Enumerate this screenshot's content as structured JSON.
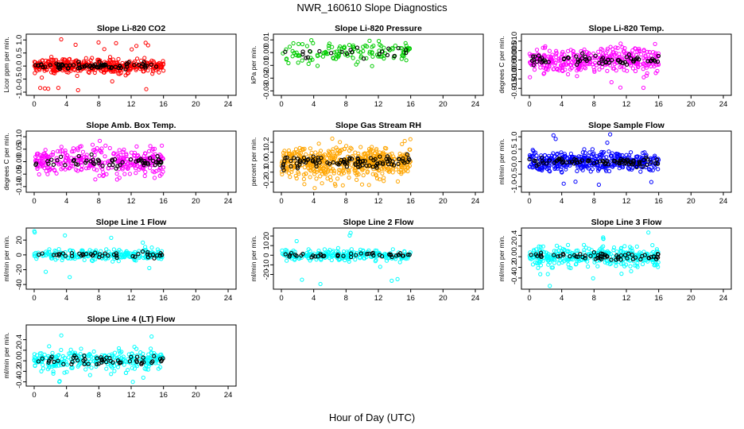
{
  "figure": {
    "title": "NWR_160610  Slope Diagnostics",
    "xlabel": "Hour of Day (UTC)"
  },
  "chart_data": [
    {
      "id": "co2",
      "type": "scatter",
      "title": "Slope Li-820 CO2",
      "ylabel": "Licor ppm per min.",
      "color": "#ff0000",
      "xlim": [
        0,
        24
      ],
      "xticks": [
        0,
        4,
        8,
        12,
        16,
        20,
        24
      ],
      "ylim": [
        -1.0,
        1.1
      ],
      "yticks": [
        -1.0,
        -0.5,
        0.0,
        0.5,
        1.0
      ],
      "ytick_labels": [
        "-1.0",
        "-0.5",
        "0.0",
        "0.5",
        "1.0"
      ],
      "series": [
        {
          "name": "all samples",
          "values": "dense scatter 0-16 h, mostly within +/-0.3, extremes near +1.1 and -1.0"
        },
        {
          "name": "selected (black)",
          "values": "near 0.0"
        }
      ]
    },
    {
      "id": "pressure",
      "type": "scatter",
      "title": "Slope Li-820 Pressure",
      "ylabel": "kPa per min.",
      "color": "#00cc00",
      "xlim": [
        0,
        24
      ],
      "xticks": [
        0,
        4,
        8,
        12,
        16,
        20,
        24
      ],
      "ylim": [
        -0.031,
        0.012
      ],
      "yticks": [
        -0.03,
        -0.02,
        -0.01,
        0.0,
        0.01
      ],
      "ytick_labels": [
        "-0.03",
        "-0.02",
        "-0.01",
        "0.00",
        "0.01"
      ],
      "series": [
        {
          "name": "all samples",
          "values": "0-16 h, mostly between -0.01 and +0.01, outliers to -0.03"
        },
        {
          "name": "selected (black)",
          "values": "near 0.00"
        }
      ]
    },
    {
      "id": "temp",
      "type": "scatter",
      "title": "Slope Li-820 Temp.",
      "ylabel": "degrees C per min.",
      "color": "#ff00ff",
      "xlim": [
        0,
        24
      ],
      "xticks": [
        0,
        4,
        8,
        12,
        16,
        20,
        24
      ],
      "ylim": [
        -0.017,
        0.012
      ],
      "yticks": [
        -0.015,
        -0.01,
        -0.005,
        0.0,
        0.005,
        0.01
      ],
      "ytick_labels": [
        "-0.015",
        "-0.010",
        "-0.005",
        "0.000",
        "0.005",
        "0.010"
      ],
      "series": [
        {
          "name": "all samples",
          "values": "0-16 h, roughly -0.012 to +0.010"
        },
        {
          "name": "selected (black)",
          "values": "roughly -0.01 to +0.006"
        }
      ]
    },
    {
      "id": "boxtemp",
      "type": "scatter",
      "title": "Slope Amb. Box Temp.",
      "ylabel": "degrees C per min.",
      "color": "#ff00ff",
      "xlim": [
        0,
        24
      ],
      "xticks": [
        0,
        4,
        8,
        12,
        16,
        20,
        24
      ],
      "ylim": [
        -0.11,
        0.11
      ],
      "yticks": [
        -0.1,
        -0.05,
        0.0,
        0.05,
        0.1
      ],
      "ytick_labels": [
        "-0.10",
        "-0.05",
        "0.00",
        "0.05",
        "0.10"
      ],
      "series": [
        {
          "name": "all samples",
          "values": "0-16 h, roughly -0.10 to +0.10"
        },
        {
          "name": "selected (black)",
          "values": "roughly -0.05 to +0.05"
        }
      ]
    },
    {
      "id": "rh",
      "type": "scatter",
      "title": "Slope Gas Stream RH",
      "ylabel": "percent per min.",
      "color": "#ffa500",
      "xlim": [
        0,
        24
      ],
      "xticks": [
        0,
        4,
        8,
        12,
        16,
        20,
        24
      ],
      "ylim": [
        -0.27,
        0.28
      ],
      "yticks": [
        -0.2,
        -0.1,
        0.0,
        0.1,
        0.2
      ],
      "ytick_labels": [
        "-0.2",
        "-0.1",
        "0.0",
        "0.1",
        "0.2"
      ],
      "series": [
        {
          "name": "all samples",
          "values": "0-16 h, dense band -0.2 to +0.2"
        },
        {
          "name": "selected (black)",
          "values": "roughly -0.1 to +0.1"
        }
      ]
    },
    {
      "id": "sampleflow",
      "type": "scatter",
      "title": "Slope Sample Flow",
      "ylabel": "ml/min per min.",
      "color": "#0000ff",
      "xlim": [
        0,
        24
      ],
      "xticks": [
        0,
        4,
        8,
        12,
        16,
        20,
        24
      ],
      "ylim": [
        -1.1,
        1.1
      ],
      "yticks": [
        -1.0,
        -0.5,
        0.0,
        0.5,
        1.0
      ],
      "ytick_labels": [
        "-1.0",
        "-0.5",
        "0.0",
        "0.5",
        "1.0"
      ],
      "series": [
        {
          "name": "all samples",
          "values": "0-16 h, mostly within +/-0.5, extremes near +/-1.0"
        },
        {
          "name": "selected (black)",
          "values": "near 0.0"
        }
      ]
    },
    {
      "id": "line1",
      "type": "scatter",
      "title": "Slope Line 1 Flow",
      "ylabel": "ml/min per min.",
      "color": "#00ffff",
      "xlim": [
        0,
        24
      ],
      "xticks": [
        0,
        4,
        8,
        12,
        16,
        20,
        24
      ],
      "ylim": [
        -42,
        32
      ],
      "yticks": [
        -40,
        -20,
        0,
        20
      ],
      "ytick_labels": [
        "-40",
        "-20",
        "0",
        "20"
      ],
      "series": [
        {
          "name": "all samples",
          "values": "0-16 h, mostly within +/-10, outliers to +30 and -40"
        },
        {
          "name": "selected (black)",
          "values": "near 0"
        }
      ]
    },
    {
      "id": "line2",
      "type": "scatter",
      "title": "Slope Line 2 Flow",
      "ylabel": "ml/min per min.",
      "color": "#00ffff",
      "xlim": [
        0,
        24
      ],
      "xticks": [
        0,
        4,
        8,
        12,
        16,
        20,
        24
      ],
      "ylim": [
        -32,
        25
      ],
      "yticks": [
        -20,
        -10,
        0,
        10,
        20
      ],
      "ytick_labels": [
        "-20",
        "-10",
        "0",
        "10",
        "20"
      ],
      "series": [
        {
          "name": "all samples",
          "values": "0-16 h, mostly within +/-8, outliers to +25 and -30"
        },
        {
          "name": "selected (black)",
          "values": "near 0"
        }
      ]
    },
    {
      "id": "line3",
      "type": "scatter",
      "title": "Slope Line 3 Flow",
      "ylabel": "ml/min per min.",
      "color": "#00ffff",
      "xlim": [
        0,
        24
      ],
      "xticks": [
        0,
        4,
        8,
        12,
        16,
        20,
        24
      ],
      "ylim": [
        -0.55,
        0.48
      ],
      "yticks": [
        -0.4,
        -0.2,
        0.0,
        0.2,
        0.4
      ],
      "ytick_labels": [
        "-0.4",
        "-0.2",
        "0.0",
        "0.2",
        "0.4"
      ],
      "series": [
        {
          "name": "all samples",
          "values": "0-16 h, roughly -0.3 to +0.3, extremes near +0.45 and -0.55"
        },
        {
          "name": "selected (black)",
          "values": "roughly -0.1 to +0.35"
        }
      ]
    },
    {
      "id": "line4",
      "type": "scatter",
      "title": "Slope Line 4 (LT) Flow",
      "ylabel": "ml/min per min.",
      "color": "#00ffff",
      "xlim": [
        0,
        24
      ],
      "xticks": [
        0,
        4,
        8,
        12,
        16,
        20,
        24
      ],
      "ylim": [
        -0.42,
        0.62
      ],
      "yticks": [
        -0.4,
        -0.2,
        0.0,
        0.2,
        0.4
      ],
      "ytick_labels": [
        "-0.4",
        "-0.2",
        "0.0",
        "0.2",
        "0.4"
      ],
      "series": [
        {
          "name": "all samples",
          "values": "0-16 h, roughly -0.3 to +0.3, extreme near +0.6"
        },
        {
          "name": "selected (black)",
          "values": "roughly -0.15 to +0.2"
        }
      ]
    }
  ]
}
